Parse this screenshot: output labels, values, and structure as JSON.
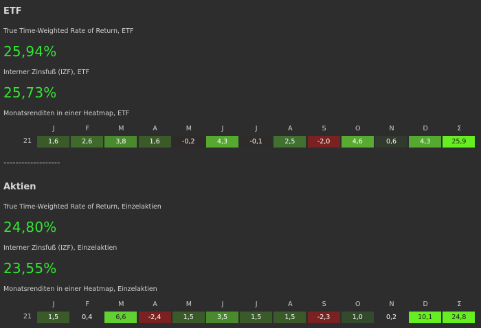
{
  "etf": {
    "title": "ETF",
    "ttwror_label": "True Time-Weighted Rate of Return, ETF",
    "ttwror_value": "25,94%",
    "izf_label": "Interner Zinsfuß (IZF), ETF",
    "izf_value": "25,73%",
    "heatmap_label": "Monatsrenditen in einer Heatmap, ETF",
    "heatmap": {
      "headers": [
        "J",
        "F",
        "M",
        "A",
        "M",
        "J",
        "J",
        "A",
        "S",
        "O",
        "N",
        "D",
        "Σ"
      ],
      "year": "21",
      "values": [
        "1,6",
        "2,6",
        "3,8",
        "1,6",
        "-0,2",
        "4,3",
        "-0,1",
        "2,5",
        "-2,0",
        "4,6",
        "0,6",
        "4,3",
        "25,9"
      ],
      "colors": [
        "#3a5a2a",
        "#3f6a2c",
        "#4a8a2e",
        "#3a5a2a",
        "#2f2a2a",
        "#55a830",
        "#2e2c2b",
        "#417030",
        "#7a2222",
        "#58aa32",
        "#323a2e",
        "#55a830",
        "#66ee22"
      ],
      "text_colors": [
        "#ffffff",
        "#ffffff",
        "#ffffff",
        "#ffffff",
        "#ffffff",
        "#ffffff",
        "#ffffff",
        "#ffffff",
        "#ffffff",
        "#ffffff",
        "#ffffff",
        "#ffffff",
        "#1a1a1a"
      ]
    }
  },
  "divider": "-------------------",
  "aktien": {
    "title": "Aktien",
    "ttwror_label": "True Time-Weighted Rate of Return, Einzelaktien",
    "ttwror_value": "24,80%",
    "izf_label": "Interner Zinsfuß (IZF), Einzelaktien",
    "izf_value": "23,55%",
    "heatmap_label": "Monatsrenditen in einer Heatmap, Einzelaktien",
    "heatmap": {
      "headers": [
        "J",
        "F",
        "M",
        "A",
        "M",
        "J",
        "J",
        "A",
        "S",
        "O",
        "N",
        "D",
        "Σ"
      ],
      "year": "21",
      "values": [
        "1,5",
        "0,4",
        "6,6",
        "-2,4",
        "1,5",
        "3,5",
        "1,5",
        "1,5",
        "-2,3",
        "1,0",
        "0,2",
        "10,1",
        "24,8"
      ],
      "colors": [
        "#3a5a2a",
        "#2d2d2d",
        "#62d030",
        "#7a2222",
        "#3a5a2a",
        "#4a8a2e",
        "#3a5a2a",
        "#3a5a2a",
        "#7a2222",
        "#344a2c",
        "#2d2d2d",
        "#66ee22",
        "#66ee22"
      ],
      "text_colors": [
        "#ffffff",
        "#ffffff",
        "#1a1a1a",
        "#ffffff",
        "#ffffff",
        "#ffffff",
        "#ffffff",
        "#ffffff",
        "#ffffff",
        "#ffffff",
        "#ffffff",
        "#1a1a1a",
        "#1a1a1a"
      ]
    }
  }
}
